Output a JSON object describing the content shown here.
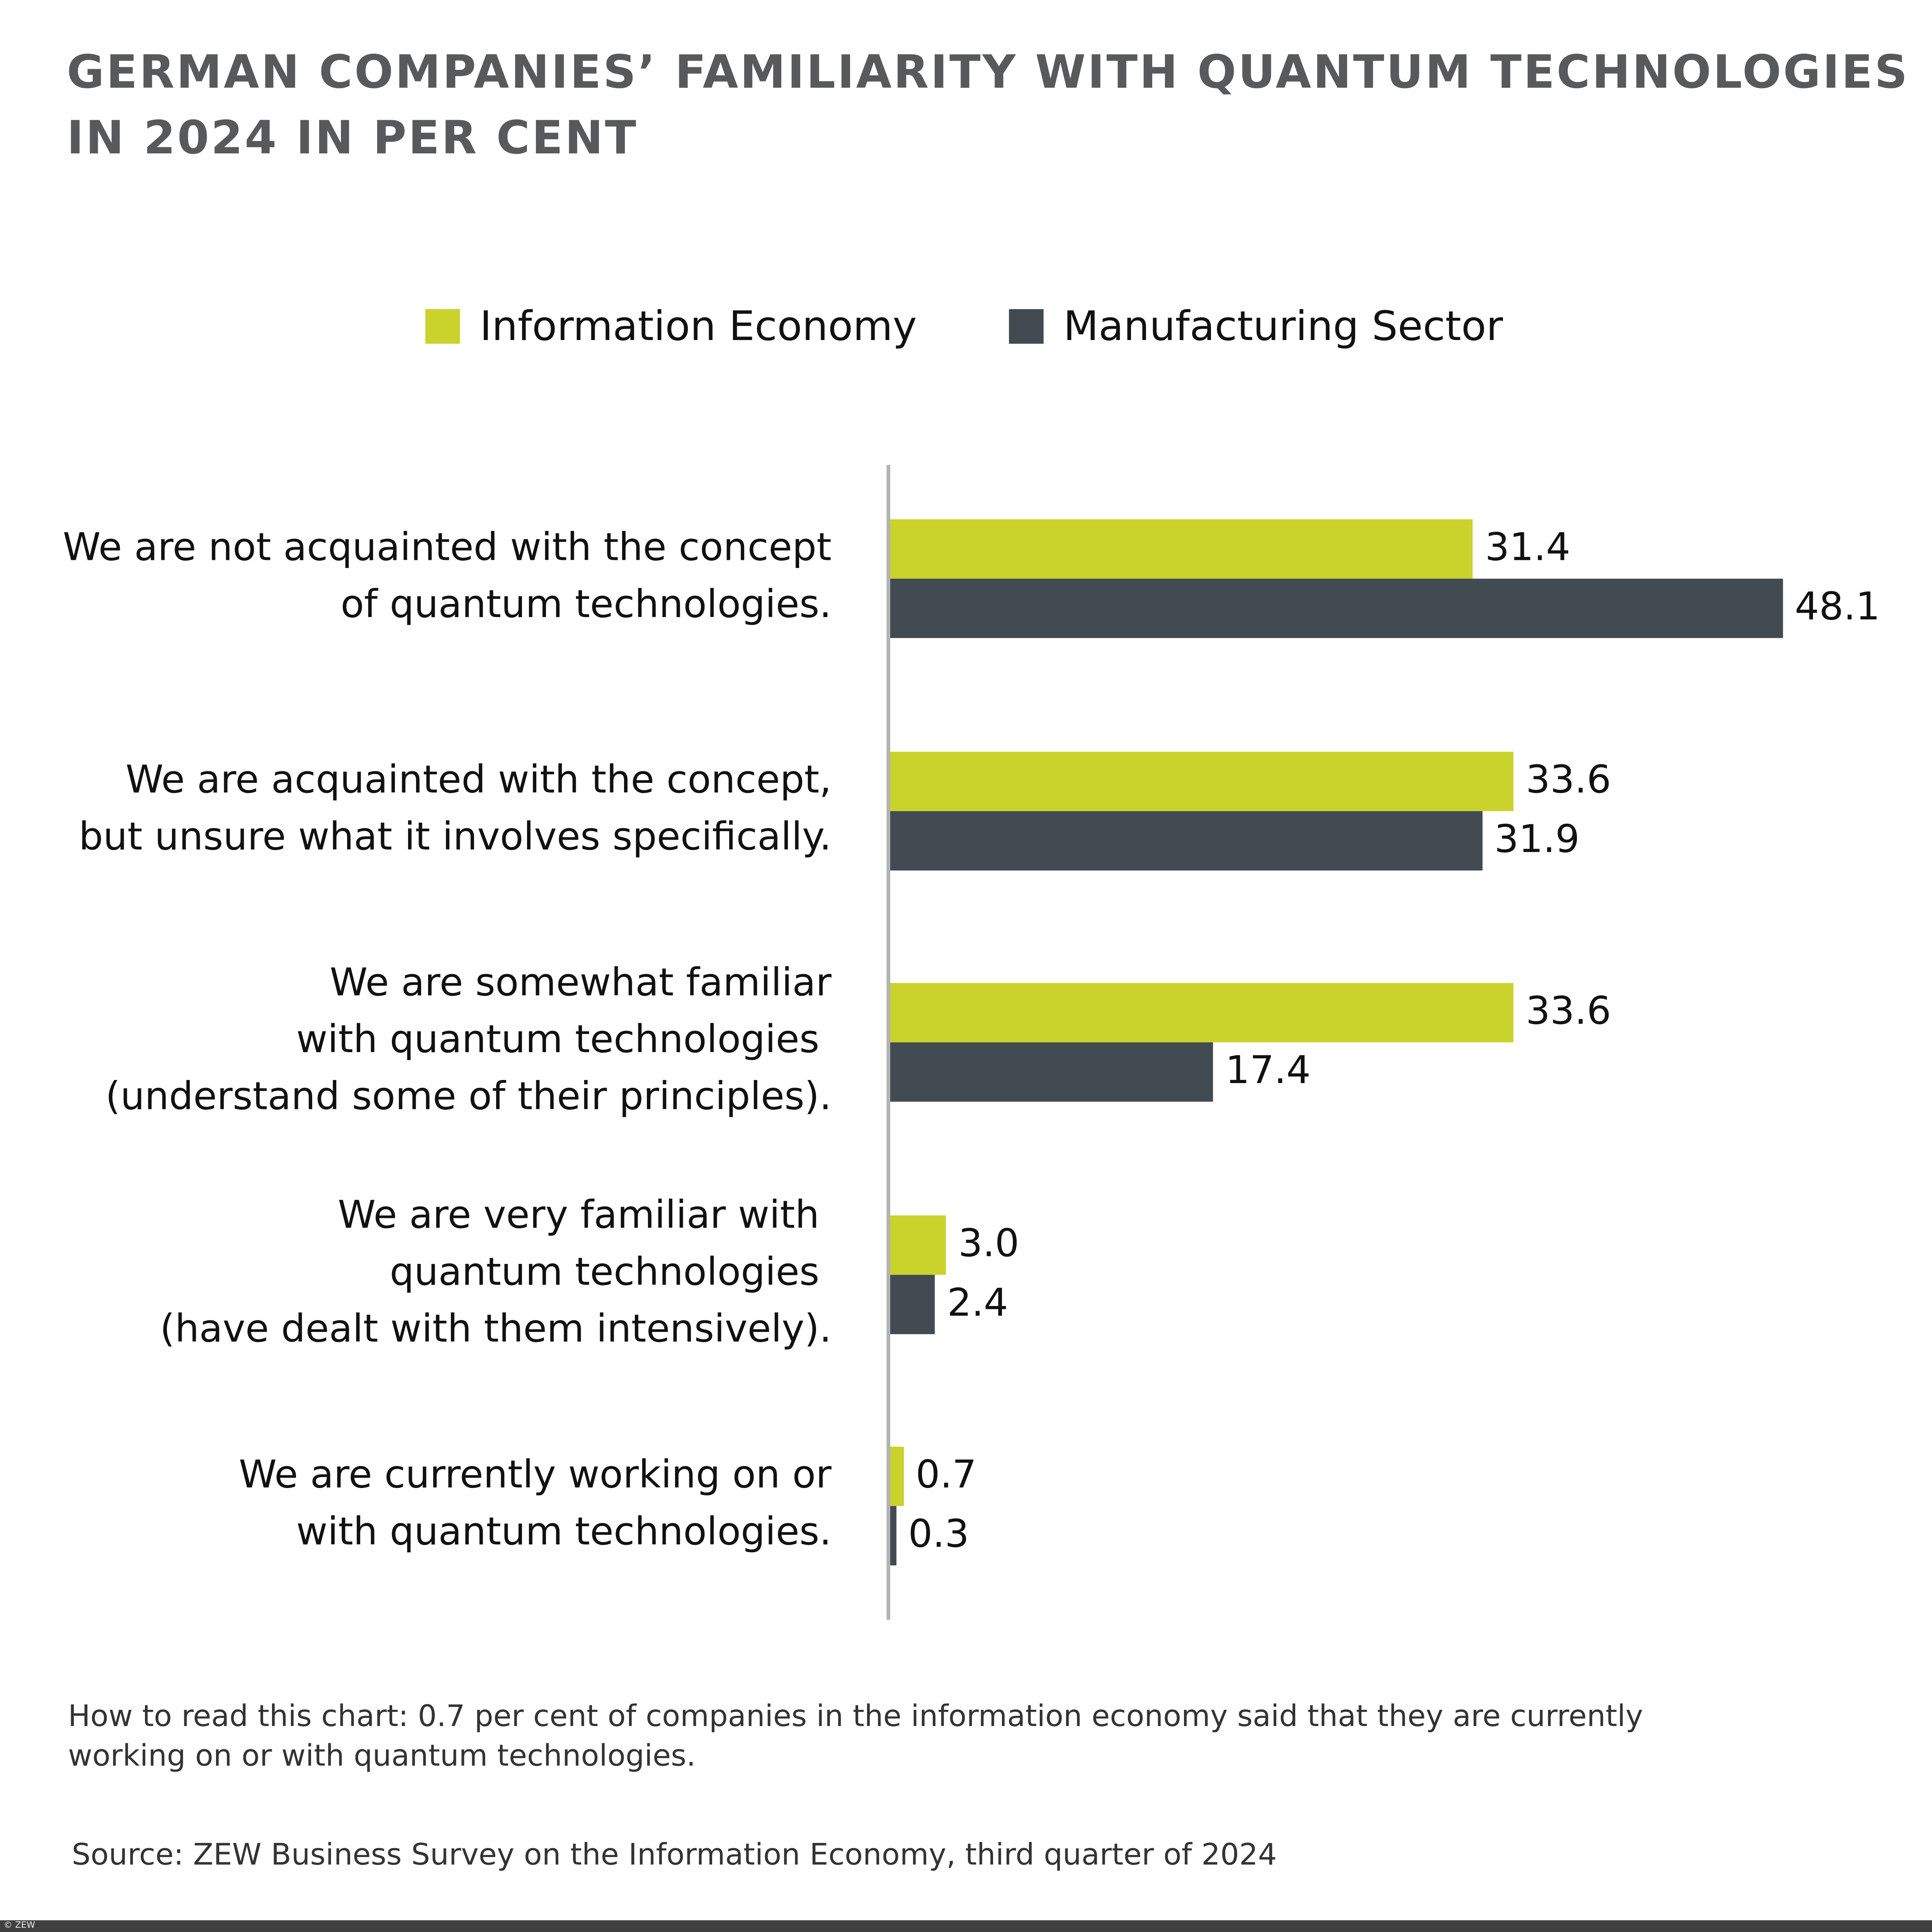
{
  "chart_data": {
    "type": "bar",
    "orientation": "horizontal",
    "title": "GERMAN COMPANIES’ FAMILIARITY WITH QUANTUM TECHNOLOGIES IN 2024 IN PER CENT",
    "title_lines": [
      "GERMAN COMPANIES’ FAMILIARITY WITH QUANTUM TECHNOLOGIES",
      "IN 2024 IN PER CENT"
    ],
    "categories": [
      "We are not acquainted with the concept\nof quantum technologies.",
      "We are acquainted with the concept,\nbut unsure what it involves specifically.",
      "We are somewhat familiar\nwith quantum technologies \n(understand some of their principles).",
      "We are very familiar with \nquantum technologies \n(have dealt with them intensively).",
      "We are currently working on or\nwith quantum technologies."
    ],
    "series": [
      {
        "name": "Information Economy",
        "color": "#c9d32b",
        "values": [
          31.4,
          33.6,
          33.6,
          3.0,
          0.7
        ],
        "labels": [
          "31.4",
          "33.6",
          "33.6",
          "3.0",
          "0.7"
        ]
      },
      {
        "name": "Manufacturing Sector",
        "color": "#424a52",
        "values": [
          48.1,
          31.9,
          17.4,
          2.4,
          0.3
        ],
        "labels": [
          "48.1",
          "31.9",
          "17.4",
          "2.4",
          "0.3"
        ]
      }
    ],
    "xlim": [
      0,
      50
    ],
    "grid": false,
    "legend": "top"
  },
  "note": "How to read this chart: 0.7 per cent of companies in the information economy said that they are currently working on or with quantum technologies.",
  "source": "Source: ZEW Business Survey on the Information Economy, third quarter of 2024",
  "copyright": "© ZEW"
}
